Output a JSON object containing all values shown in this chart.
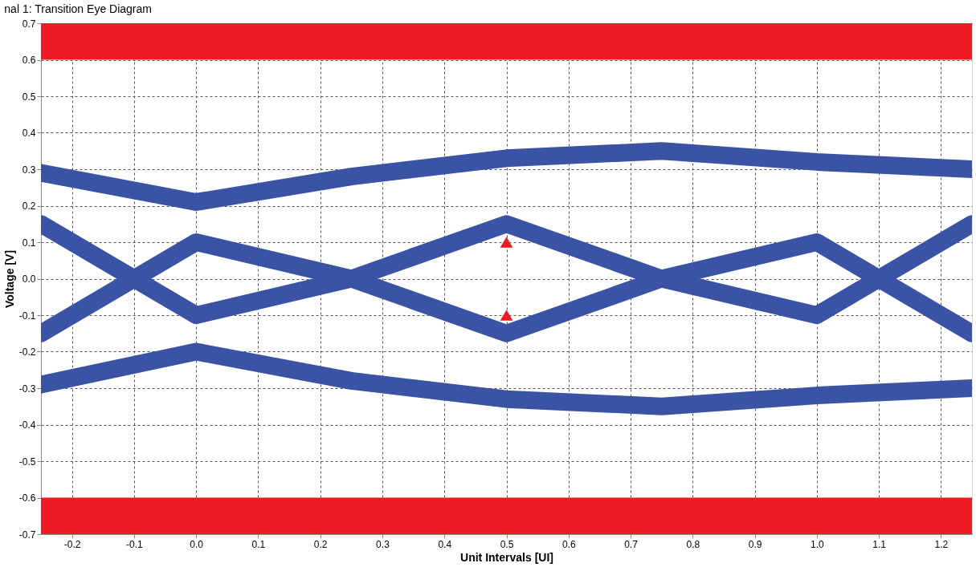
{
  "chart_data": {
    "type": "line",
    "title": "nal 1: Transition Eye Diagram",
    "xlabel": "Unit Intervals [UI]",
    "ylabel": "Voltage [V]",
    "xlim": [
      -0.25,
      1.25
    ],
    "xticks": [
      -0.2,
      -0.1,
      {
        "value": 0,
        "label": "0.0"
      },
      0.1,
      0.2,
      0.3,
      0.4,
      0.5,
      0.6,
      0.7,
      0.8,
      0.9,
      {
        "value": 1,
        "label": "1.0"
      },
      1.1,
      1.2
    ],
    "ylim": [
      -0.7,
      0.7
    ],
    "yticks": [
      -0.7,
      -0.6,
      -0.5,
      -0.4,
      -0.3,
      -0.2,
      -0.1,
      {
        "value": 0,
        "label": "0.0"
      },
      0.1,
      0.2,
      0.3,
      0.4,
      0.5,
      0.6,
      0.7
    ],
    "grid": true,
    "line_style": "solid",
    "x": [
      -0.25,
      0,
      0.25,
      0.5,
      0.75,
      1,
      1.25
    ],
    "series": [
      {
        "color": "#3a53a4",
        "values": [
          0.29,
          0.21,
          0.28,
          0.33,
          0.35,
          0.32,
          0.3
        ]
      },
      {
        "color": "#3a53a4",
        "values": [
          -0.29,
          -0.2,
          -0.28,
          -0.33,
          -0.35,
          -0.32,
          -0.3
        ]
      },
      {
        "color": "#3a53a4",
        "values": [
          0.15,
          -0.1,
          0.0,
          0.15,
          0.0,
          -0.1,
          0.15
        ]
      },
      {
        "color": "#3a53a4",
        "values": [
          -0.15,
          0.1,
          0.0,
          -0.15,
          0.0,
          0.1,
          -0.15
        ]
      },
      {
        "type": "scatter",
        "marker": "triangle",
        "color": "#ed1c24",
        "x": [
          0.5,
          0.5
        ],
        "values": [
          0.1,
          -0.1
        ]
      }
    ],
    "bands": [
      {
        "axis": "y",
        "from": 0.6,
        "to": 0.7,
        "color": "#ed1c24"
      },
      {
        "axis": "y",
        "from": -0.7,
        "to": -0.6,
        "color": "#ed1c24"
      }
    ]
  }
}
